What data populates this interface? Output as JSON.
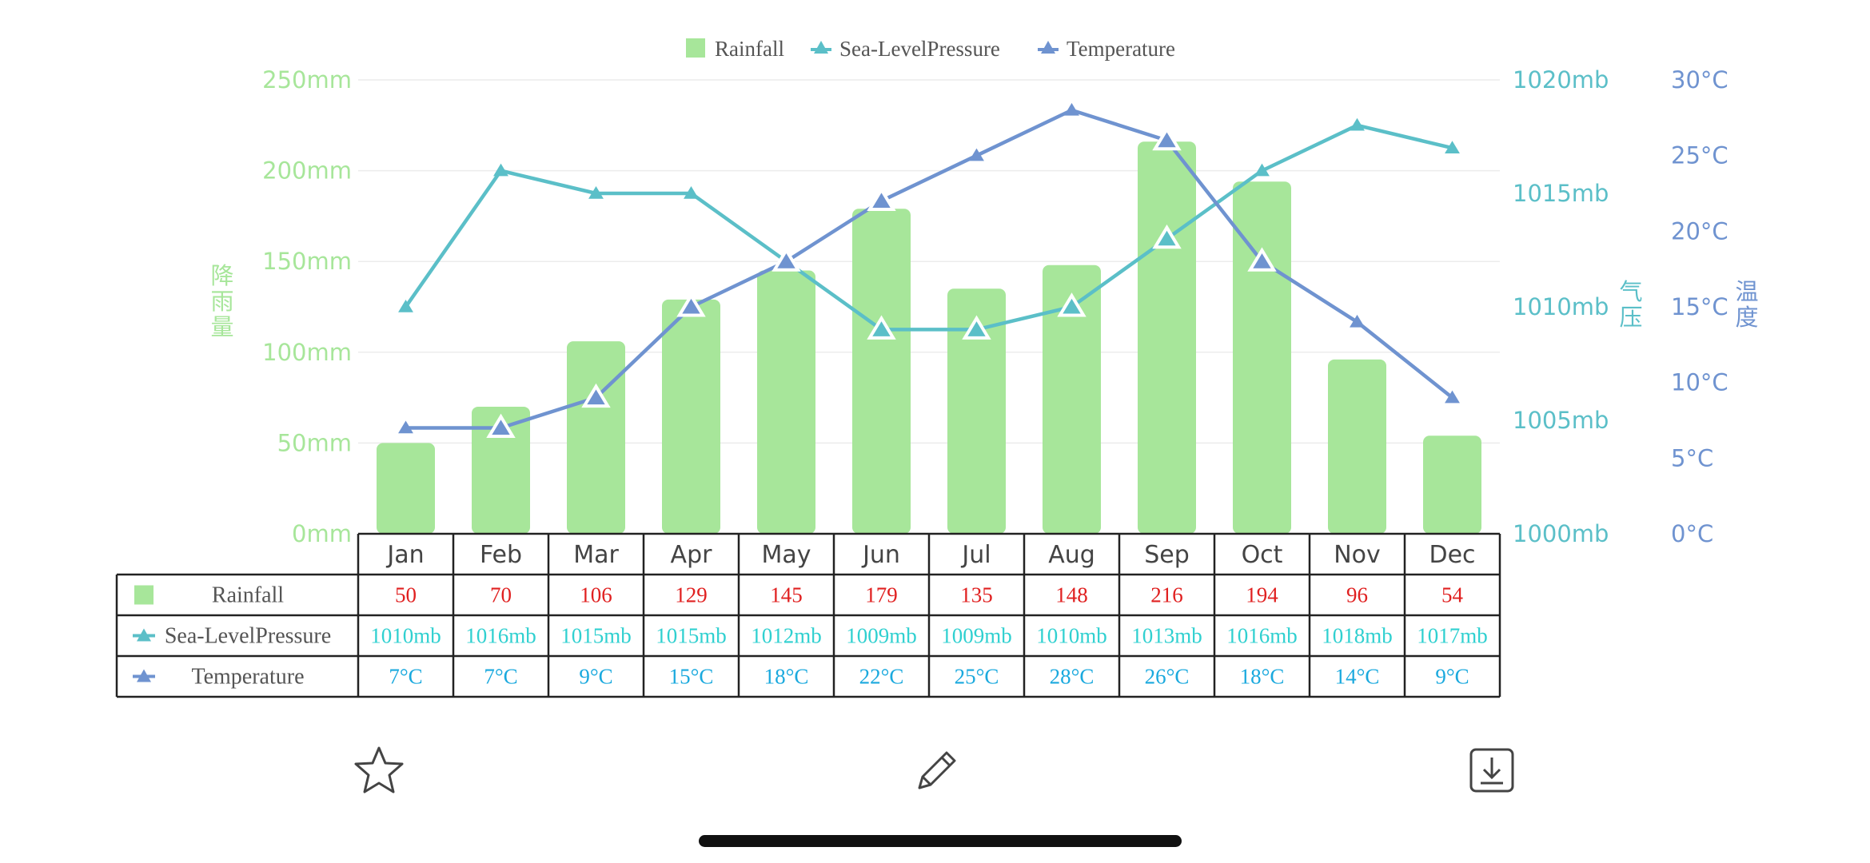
{
  "chart_data": {
    "type": "bar-line-combo",
    "categories": [
      "Jan",
      "Feb",
      "Mar",
      "Apr",
      "May",
      "Jun",
      "Jul",
      "Aug",
      "Sep",
      "Oct",
      "Nov",
      "Dec"
    ],
    "series": [
      {
        "name": "Rainfall",
        "type": "bar",
        "axis": "left",
        "values": [
          50,
          70,
          106,
          129,
          145,
          179,
          135,
          148,
          216,
          194,
          96,
          54
        ],
        "table_values": [
          "50",
          "70",
          "106",
          "129",
          "145",
          "179",
          "135",
          "148",
          "216",
          "194",
          "96",
          "54"
        ],
        "color": "#a7e69a"
      },
      {
        "name": "Sea-LevelPressure",
        "type": "line",
        "axis": "middle",
        "values": [
          1010,
          1016,
          1015,
          1015,
          1012,
          1009,
          1009,
          1010,
          1013,
          1016,
          1018,
          1017
        ],
        "table_values": [
          "1010mb",
          "1016mb",
          "1015mb",
          "1015mb",
          "1012mb",
          "1009mb",
          "1009mb",
          "1010mb",
          "1013mb",
          "1016mb",
          "1018mb",
          "1017mb"
        ],
        "color": "#5bbfc8"
      },
      {
        "name": "Temperature",
        "type": "line",
        "axis": "right",
        "values": [
          7,
          7,
          9,
          15,
          18,
          22,
          25,
          28,
          26,
          18,
          14,
          9
        ],
        "table_values": [
          "7°C",
          "7°C",
          "9°C",
          "15°C",
          "18°C",
          "22°C",
          "25°C",
          "28°C",
          "26°C",
          "18°C",
          "14°C",
          "9°C"
        ],
        "color": "#6f93d0"
      }
    ],
    "axes": {
      "left": {
        "name": "降雨量",
        "ylim": [
          0,
          250
        ],
        "ticks": [
          "0mm",
          "50mm",
          "100mm",
          "150mm",
          "200mm",
          "250mm"
        ]
      },
      "middle": {
        "name": "气压",
        "ylim": [
          1000,
          1020
        ],
        "ticks": [
          "1000mb",
          "1005mb",
          "1010mb",
          "1015mb",
          "1020mb"
        ]
      },
      "right": {
        "name": "温度",
        "ylim": [
          0,
          30
        ],
        "ticks": [
          "0°C",
          "5°C",
          "10°C",
          "15°C",
          "20°C",
          "25°C",
          "30°C"
        ]
      }
    },
    "legend_position": "top-center",
    "grid": true,
    "data_table": true
  },
  "colors": {
    "rainfall": "#a7e69a",
    "pressure": "#5bbfc8",
    "temperature": "#6f93d0",
    "rain_text": "#e02020",
    "pressure_text": "#2fd0d0",
    "temp_text": "#1aa9de"
  },
  "toolbar": {
    "favorite_icon": "star-icon",
    "edit_icon": "pencil-icon",
    "download_icon": "download-icon"
  }
}
